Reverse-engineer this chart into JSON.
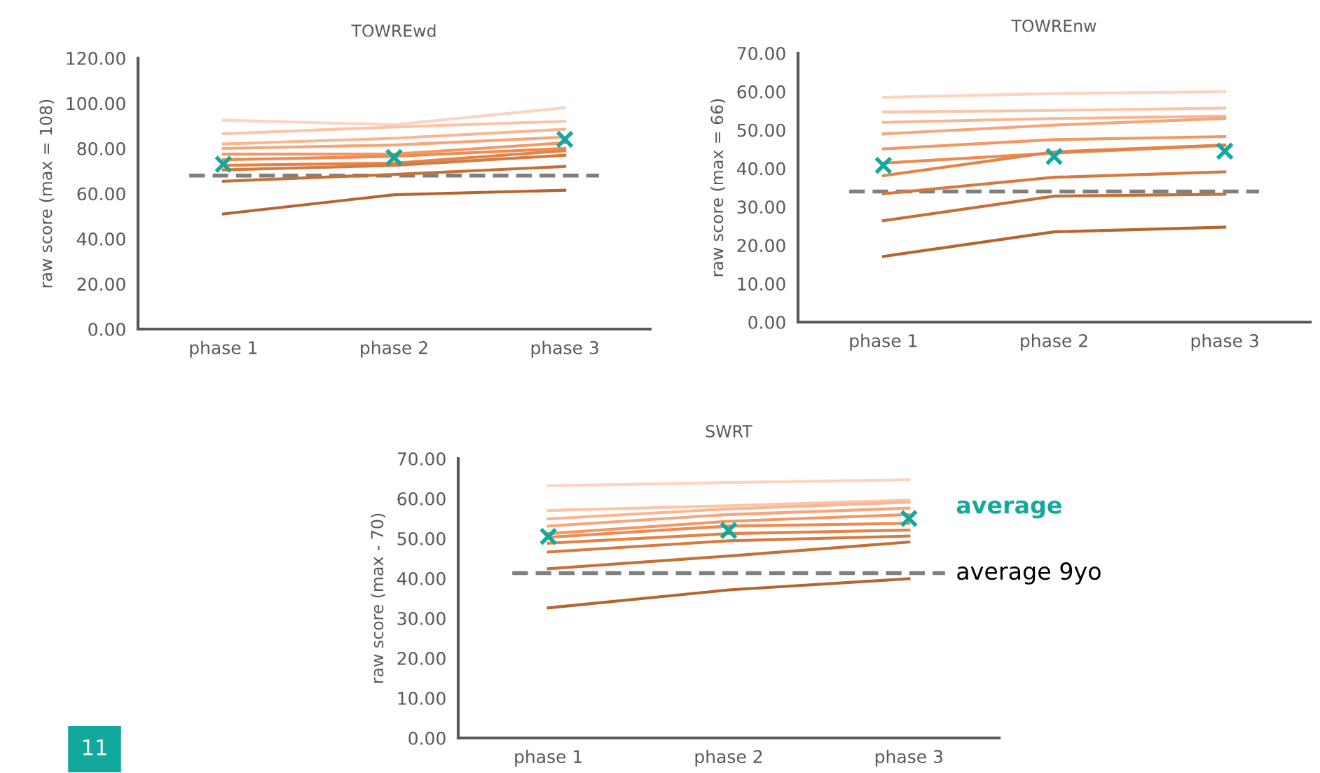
{
  "chart_data": [
    {
      "type": "line",
      "title": "TOWREwd",
      "ylabel": "raw score (max = 108)",
      "categories": [
        "phase 1",
        "phase 2",
        "phase 3"
      ],
      "ylim": [
        0,
        120
      ],
      "yticks": [
        {
          "value": 0,
          "label": "0.00"
        },
        {
          "value": 20,
          "label": "20.00"
        },
        {
          "value": 40,
          "label": "40.00"
        },
        {
          "value": 60,
          "label": "60.00"
        },
        {
          "value": 80,
          "label": "80.00"
        },
        {
          "value": 100,
          "label": "100.00"
        },
        {
          "value": 120,
          "label": "120.00"
        }
      ],
      "grid": false,
      "marker": "none",
      "line_style": "solid",
      "series": [
        {
          "color": "#fbd5c2",
          "values": [
            92.5,
            90.5,
            98
          ]
        },
        {
          "color": "#f9c6ab",
          "values": [
            86.5,
            89.5,
            92
          ]
        },
        {
          "color": "#f7b793",
          "values": [
            82,
            84.5,
            88.5
          ]
        },
        {
          "color": "#f5a77b",
          "values": [
            80,
            81.5,
            85
          ]
        },
        {
          "color": "#f29865",
          "values": [
            77.5,
            77.5,
            82.5
          ]
        },
        {
          "color": "#ed8b52",
          "values": [
            75,
            76.5,
            80
          ]
        },
        {
          "color": "#e28347",
          "values": [
            72.5,
            73.5,
            79
          ]
        },
        {
          "color": "#d57a40",
          "values": [
            70.5,
            72.5,
            77
          ]
        },
        {
          "color": "#c47138",
          "values": [
            65.5,
            68.5,
            72
          ]
        },
        {
          "color": "#b56630",
          "values": [
            51,
            59.5,
            61.5
          ]
        },
        {
          "type": "scatter",
          "marker": "cross",
          "color": "#13a89e",
          "values": [
            73,
            76,
            84
          ]
        }
      ],
      "ref_lines": [
        {
          "axis": "y",
          "value": 68,
          "color": "#7f7f7f",
          "line_style": "dashed"
        }
      ]
    },
    {
      "type": "line",
      "title": "TOWREnw",
      "ylabel": "raw score (max = 66)",
      "categories": [
        "phase 1",
        "phase 2",
        "phase 3"
      ],
      "ylim": [
        0,
        70
      ],
      "yticks": [
        {
          "value": 0,
          "label": "0.00"
        },
        {
          "value": 10,
          "label": "10.00"
        },
        {
          "value": 20,
          "label": "20.00"
        },
        {
          "value": 30,
          "label": "30.00"
        },
        {
          "value": 40,
          "label": "40.00"
        },
        {
          "value": 50,
          "label": "50.00"
        },
        {
          "value": 60,
          "label": "60.00"
        },
        {
          "value": 70,
          "label": "70.00"
        }
      ],
      "grid": false,
      "marker": "none",
      "line_style": "solid",
      "series": [
        {
          "color": "#fbd5c2",
          "values": [
            58.5,
            59.5,
            60
          ]
        },
        {
          "color": "#f9c6ab",
          "values": [
            54.7,
            55.1,
            55.7
          ]
        },
        {
          "color": "#f7b793",
          "values": [
            52,
            53,
            53.6
          ]
        },
        {
          "color": "#f5a77b",
          "values": [
            49,
            51.3,
            53
          ]
        },
        {
          "color": "#f29865",
          "values": [
            45.1,
            47.5,
            48.3
          ]
        },
        {
          "color": "#ed8b52",
          "values": [
            41.4,
            44,
            46
          ]
        },
        {
          "color": "#e28347",
          "values": [
            38.1,
            44.3,
            46.1
          ]
        },
        {
          "color": "#d57a40",
          "values": [
            33.4,
            37.7,
            39.1
          ]
        },
        {
          "color": "#c47138",
          "values": [
            26.4,
            32.8,
            33.3
          ]
        },
        {
          "color": "#b56630",
          "values": [
            17.1,
            23.5,
            24.7
          ]
        },
        {
          "type": "scatter",
          "marker": "cross",
          "color": "#13a89e",
          "values": [
            40.8,
            43.1,
            44.5
          ]
        }
      ],
      "ref_lines": [
        {
          "axis": "y",
          "value": 34,
          "color": "#7f7f7f",
          "line_style": "dashed"
        }
      ]
    },
    {
      "type": "line",
      "title": "SWRT",
      "ylabel": "raw score (max - 70)",
      "categories": [
        "phase 1",
        "phase 2",
        "phase 3"
      ],
      "ylim": [
        0,
        70
      ],
      "yticks": [
        {
          "value": 0,
          "label": "0.00"
        },
        {
          "value": 10,
          "label": "10.00"
        },
        {
          "value": 20,
          "label": "20.00"
        },
        {
          "value": 30,
          "label": "30.00"
        },
        {
          "value": 40,
          "label": "40.00"
        },
        {
          "value": 50,
          "label": "50.00"
        },
        {
          "value": 60,
          "label": "60.00"
        },
        {
          "value": 70,
          "label": "70.00"
        }
      ],
      "grid": false,
      "marker": "none",
      "line_style": "solid",
      "series": [
        {
          "color": "#fbd5c2",
          "values": [
            63.2,
            64,
            64.7
          ]
        },
        {
          "color": "#f9c6ab",
          "values": [
            57,
            58.2,
            59.6
          ]
        },
        {
          "color": "#f7b793",
          "values": [
            54.9,
            57.4,
            59.1
          ]
        },
        {
          "color": "#f5a77b",
          "values": [
            53.1,
            56,
            57.6
          ]
        },
        {
          "color": "#f29865",
          "values": [
            51.2,
            54.3,
            56
          ]
        },
        {
          "color": "#ed8b52",
          "values": [
            50.3,
            53.1,
            53.8
          ]
        },
        {
          "color": "#e28347",
          "values": [
            48.8,
            51.2,
            52.1
          ]
        },
        {
          "color": "#d57a40",
          "values": [
            46.6,
            49.4,
            50.6
          ]
        },
        {
          "color": "#c47138",
          "values": [
            42.4,
            45.6,
            49.1
          ]
        },
        {
          "color": "#b56630",
          "values": [
            32.6,
            37.1,
            39.9
          ]
        },
        {
          "type": "scatter",
          "marker": "cross",
          "name": "average",
          "color": "#13a89e",
          "values": [
            50.5,
            52,
            55
          ]
        }
      ],
      "ref_lines": [
        {
          "axis": "y",
          "value": 41.3,
          "label": "average 9yo",
          "color": "#7f7f7f",
          "line_style": "dashed"
        }
      ],
      "annotations": [
        "11"
      ]
    }
  ]
}
